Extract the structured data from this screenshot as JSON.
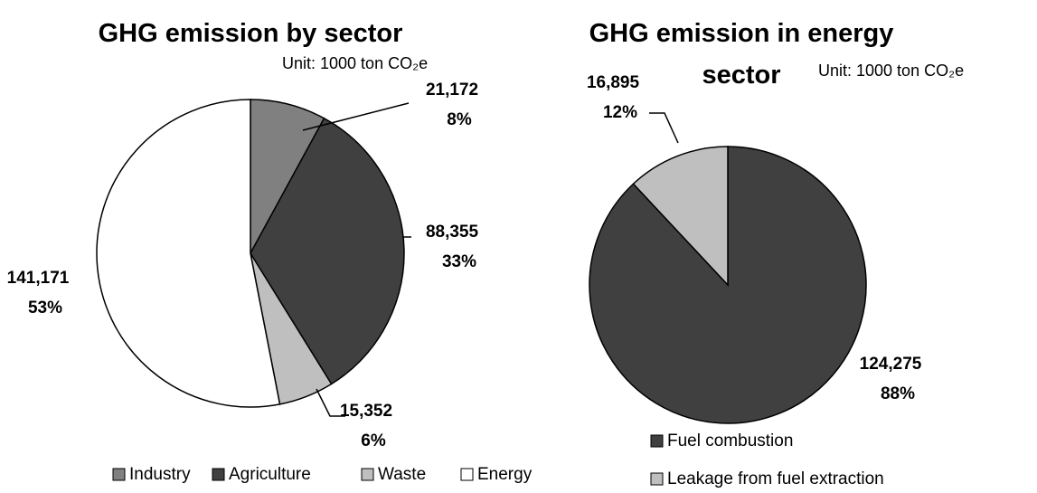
{
  "chart_data": [
    {
      "type": "pie",
      "title": "GHG emission by sector",
      "unit": "Unit:  1000 ton CO₂e",
      "categories": [
        "Industry",
        "Agriculture",
        "Waste",
        "Energy"
      ],
      "values": [
        21172,
        88355,
        15352,
        141171
      ],
      "value_labels": [
        "21,172",
        "88,355",
        "15,352",
        "141,171"
      ],
      "percents": [
        8,
        33,
        6,
        53
      ],
      "percent_labels": [
        "8%",
        "33%",
        "6%",
        "53%"
      ],
      "colors": [
        "#808080",
        "#404040",
        "#bfbfbf",
        "#ffffff"
      ],
      "legend": "bottom"
    },
    {
      "type": "pie",
      "title": "GHG emission in energy sector",
      "unit": "Unit:  1000 ton CO₂e",
      "categories": [
        "Fuel combustion",
        "Leakage from fuel extraction"
      ],
      "values": [
        124275,
        16895
      ],
      "value_labels": [
        "124,275",
        "16,895"
      ],
      "percents": [
        88,
        12
      ],
      "percent_labels": [
        "88%",
        "12%"
      ],
      "colors": [
        "#404040",
        "#bfbfbf"
      ],
      "legend": "bottom"
    }
  ]
}
